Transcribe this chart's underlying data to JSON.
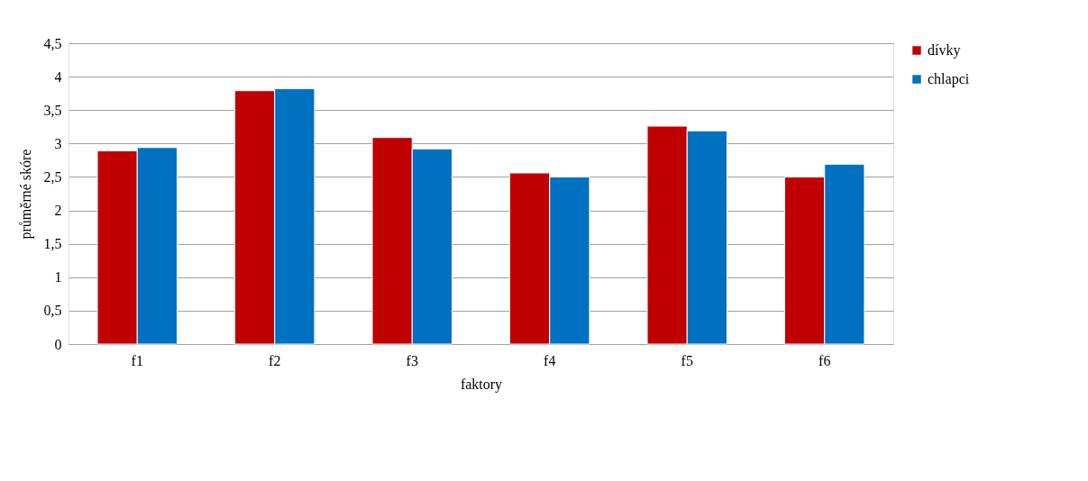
{
  "chart_data": {
    "type": "bar",
    "xlabel": "faktory",
    "ylabel": "průměrné skóre",
    "categories": [
      "f1",
      "f2",
      "f3",
      "f4",
      "f5",
      "f6"
    ],
    "series": [
      {
        "name": "dívky",
        "color": "#c00000",
        "values": [
          2.89,
          3.79,
          3.09,
          2.56,
          3.26,
          2.5
        ]
      },
      {
        "name": "chlapci",
        "color": "#0070c0",
        "values": [
          2.94,
          3.82,
          2.92,
          2.5,
          3.19,
          2.69
        ]
      }
    ],
    "ylim": [
      0,
      4.5
    ],
    "yticks": [
      0,
      {
        "value": 0.5,
        "label": "0,5"
      },
      1,
      {
        "value": 1.5,
        "label": "1,5"
      },
      2,
      {
        "value": 2.5,
        "label": "2,5"
      },
      3,
      {
        "value": 3.5,
        "label": "3,5"
      },
      4,
      {
        "value": 4.5,
        "label": "4,5"
      }
    ],
    "grid": "y",
    "legend": "right"
  }
}
